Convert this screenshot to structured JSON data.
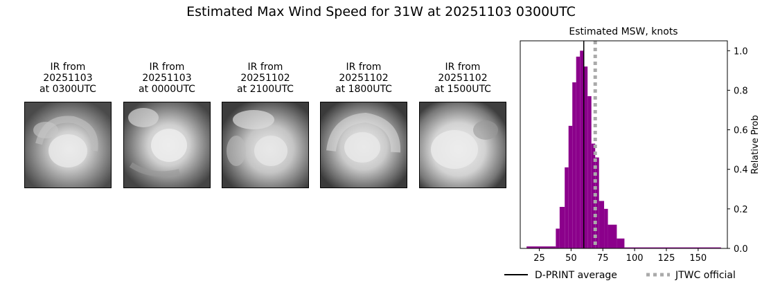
{
  "figure": {
    "title": "Estimated Max Wind Speed for 31W at 20251103 0300UTC"
  },
  "ir_panels": [
    {
      "line1": "IR from",
      "line2": "20251103",
      "line3": "at 0300UTC"
    },
    {
      "line1": "IR from",
      "line2": "20251103",
      "line3": "at 0000UTC"
    },
    {
      "line1": "IR from",
      "line2": "20251102",
      "line3": "at 2100UTC"
    },
    {
      "line1": "IR from",
      "line2": "20251102",
      "line3": "at 1800UTC"
    },
    {
      "line1": "IR from",
      "line2": "20251102",
      "line3": "at 1500UTC"
    }
  ],
  "chart_data": {
    "type": "bar",
    "title": "Estimated MSW, knots",
    "xlabel": "",
    "ylabel": "Relative Prob",
    "xlim": [
      10,
      173
    ],
    "ylim": [
      0,
      1.05
    ],
    "xticks": [
      25,
      50,
      75,
      100,
      125,
      150
    ],
    "yticks": [
      0.0,
      0.2,
      0.4,
      0.6,
      0.8,
      1.0
    ],
    "bar_color": "#8b008b",
    "bins": [
      {
        "x0": 15,
        "x1": 38,
        "value": 0.01
      },
      {
        "x0": 38,
        "x1": 41,
        "value": 0.1
      },
      {
        "x0": 41,
        "x1": 45,
        "value": 0.21
      },
      {
        "x0": 45,
        "x1": 48,
        "value": 0.41
      },
      {
        "x0": 48,
        "x1": 51,
        "value": 0.62
      },
      {
        "x0": 51,
        "x1": 54,
        "value": 0.84
      },
      {
        "x0": 54,
        "x1": 57,
        "value": 0.97
      },
      {
        "x0": 57,
        "x1": 60,
        "value": 1.0
      },
      {
        "x0": 60,
        "x1": 63,
        "value": 0.92
      },
      {
        "x0": 63,
        "x1": 66,
        "value": 0.77
      },
      {
        "x0": 66,
        "x1": 69,
        "value": 0.53
      },
      {
        "x0": 69,
        "x1": 72,
        "value": 0.46
      },
      {
        "x0": 72,
        "x1": 76,
        "value": 0.24
      },
      {
        "x0": 76,
        "x1": 79,
        "value": 0.2
      },
      {
        "x0": 79,
        "x1": 86,
        "value": 0.12
      },
      {
        "x0": 86,
        "x1": 92,
        "value": 0.05
      },
      {
        "x0": 92,
        "x1": 168,
        "value": 0.005
      }
    ],
    "dprint_average": 60,
    "jtwc_official": 69,
    "legend": {
      "placement": "below",
      "entries": [
        {
          "label": "D-PRINT average",
          "style": "solid",
          "color": "#000000"
        },
        {
          "label": "JTWC official",
          "style": "dotted",
          "color": "#aaaaaa"
        }
      ]
    }
  }
}
